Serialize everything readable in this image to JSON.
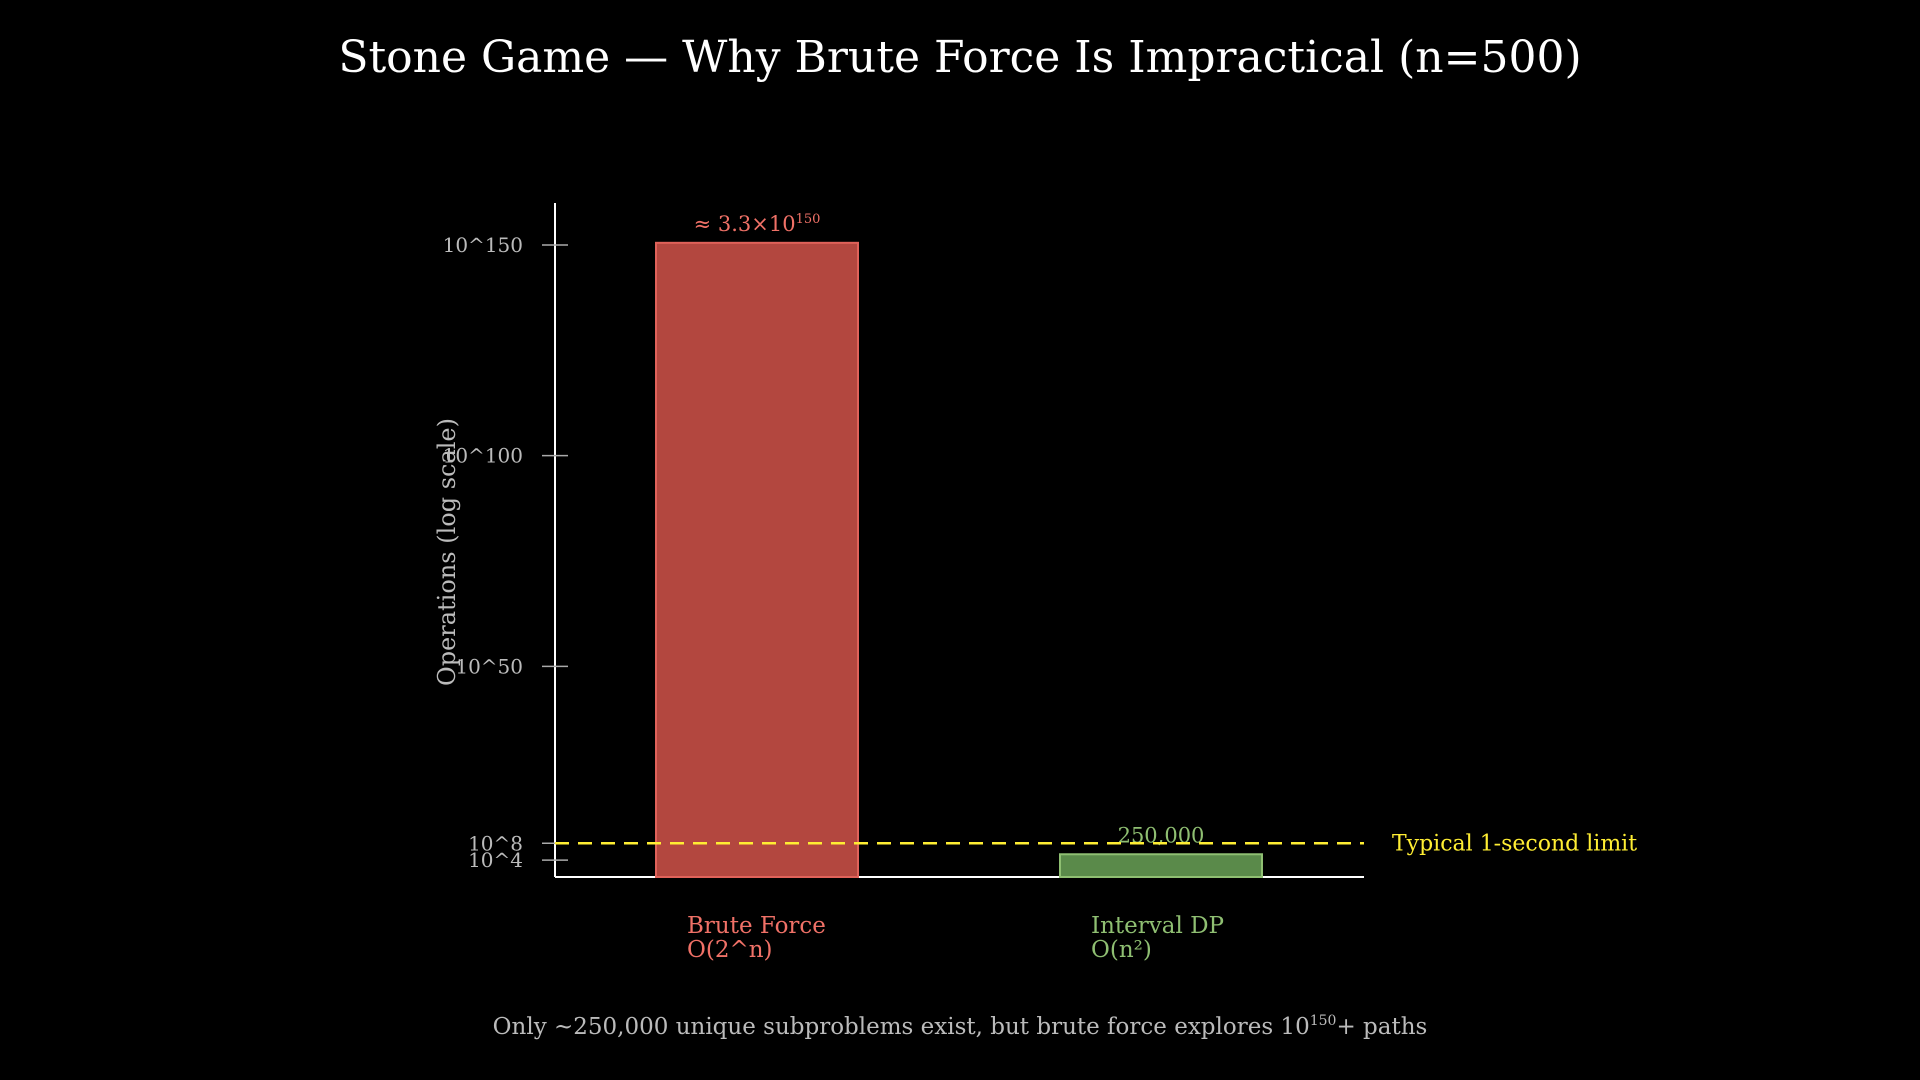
{
  "chart_data": {
    "type": "bar",
    "title": "Stone Game — Why Brute Force Is Impractical (n=500)",
    "ylabel": "Operations (log scale)",
    "xlabel": "",
    "yscale": "log",
    "ylim": [
      1,
      1e+160
    ],
    "yticks": [
      {
        "value": 10000.0,
        "label": "10^4"
      },
      {
        "value": 100000000.0,
        "label": "10^8"
      },
      {
        "value": 1e+50,
        "label": "10^50"
      },
      {
        "value": 1e+100,
        "label": "10^100"
      },
      {
        "value": 1e+150,
        "label": "10^150"
      }
    ],
    "categories": [
      {
        "name": "Brute Force",
        "complexity": "O(2^n)"
      },
      {
        "name": "Interval DP",
        "complexity": "O(n²)"
      }
    ],
    "values": [
      3.3e+150,
      250000
    ],
    "data_labels": [
      {
        "prefix": "≈ 3.3×10",
        "sup": "150"
      },
      {
        "prefix": "250,000",
        "sup": ""
      }
    ],
    "colors": {
      "brute_fill": "#b3473f",
      "brute_edge": "#e0625a",
      "brute_text": "#f07167",
      "dp_fill": "#5a8a4a",
      "dp_edge": "#8fbf72",
      "dp_text": "#8fbf72",
      "reference": "#ffee33",
      "axis": "#ffffff"
    },
    "reference_line": {
      "value": 100000000.0,
      "label": "Typical 1-second limit"
    },
    "grid": false,
    "footer": {
      "before": "Only ~250,000 unique subproblems exist, but brute force explores 10",
      "sup": "150",
      "after": "+ paths"
    }
  }
}
